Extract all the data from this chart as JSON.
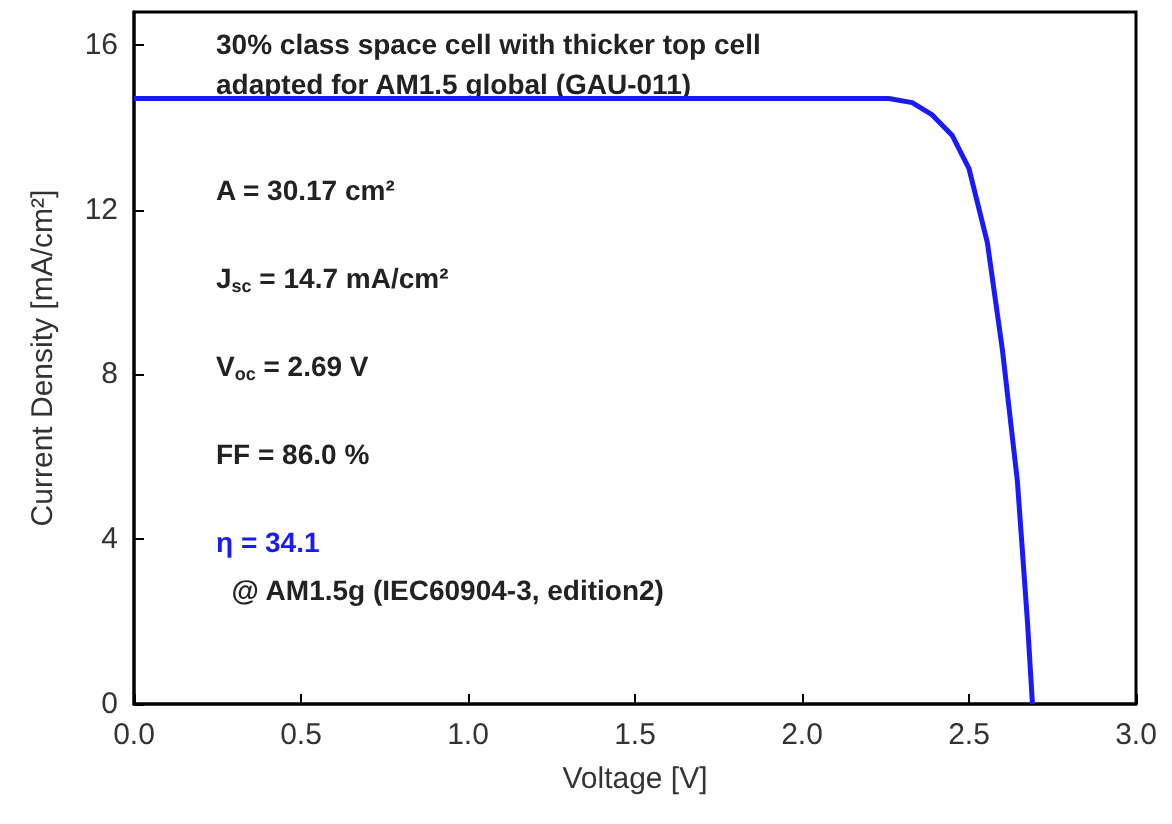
{
  "chart_data": {
    "type": "line",
    "title": "30% class space cell with thicker top cell\nadapted for AM1.5 global (GAU-011)",
    "xlabel": "Voltage [V]",
    "ylabel": "Current Density [mA/cm²]",
    "series": [
      {
        "color": "#1a1aff",
        "x": [
          0,
          0.5,
          1.0,
          1.5,
          2.0,
          2.2,
          2.26,
          2.33,
          2.39,
          2.45,
          2.5,
          2.555,
          2.6,
          2.645,
          2.675,
          2.69
        ],
        "values": [
          14.7,
          14.7,
          14.7,
          14.7,
          14.7,
          14.7,
          14.7,
          14.6,
          14.3,
          13.8,
          13.0,
          11.2,
          8.6,
          5.4,
          2.0,
          0
        ]
      }
    ],
    "annotations": [
      "A = 30.17 cm²",
      "J$_{sc}$ = 14.7 mA/cm²",
      "V$_{oc}$ = 2.69 V",
      "FF = 86.0 %",
      "η = 34.1",
      "  @ AM1.5g (IEC60904-3, edition2)"
    ],
    "xlim": [
      0,
      3
    ],
    "xticks": [
      {
        "value": 0,
        "label": "0.0"
      },
      {
        "value": 0.5,
        "label": "0.5"
      },
      {
        "value": 1,
        "label": "1.0"
      },
      {
        "value": 1.5,
        "label": "1.5"
      },
      {
        "value": 2,
        "label": "2.0"
      },
      {
        "value": 2.5,
        "label": "2.5"
      },
      {
        "value": 3,
        "label": "3.0"
      }
    ],
    "ylim": [
      0,
      16.8
    ],
    "yticks": [
      0,
      4,
      8,
      12,
      16
    ],
    "marker": "none",
    "line_style": "solid",
    "grid": false
  }
}
